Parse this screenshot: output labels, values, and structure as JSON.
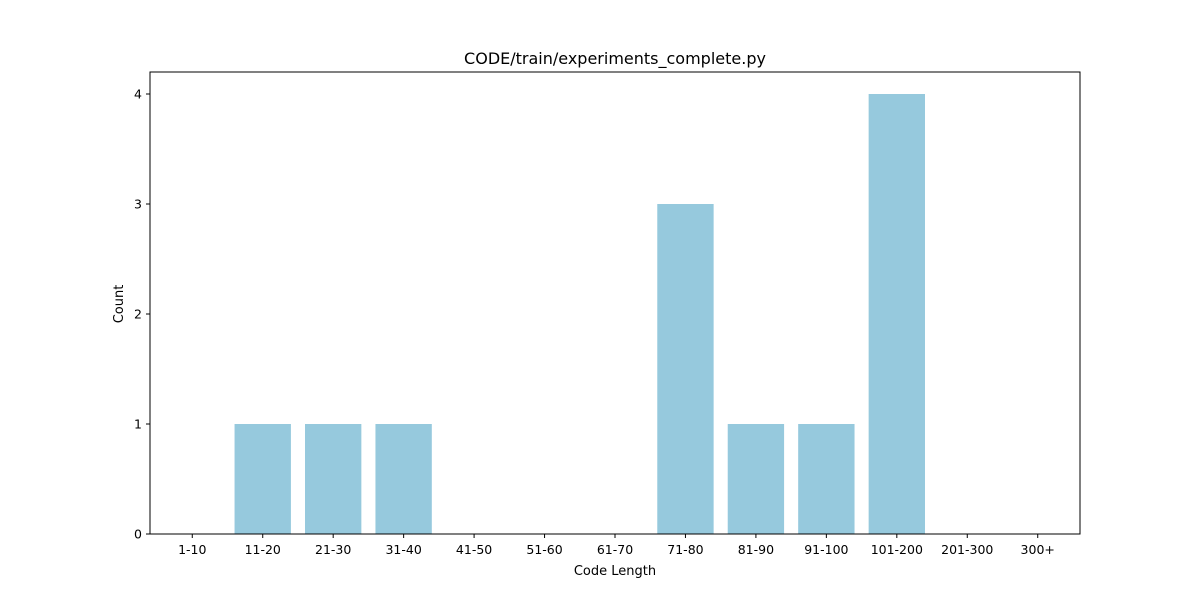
{
  "chart_data": {
    "type": "bar",
    "title": "CODE/train/experiments_complete.py",
    "xlabel": "Code Length",
    "ylabel": "Count",
    "categories": [
      "1-10",
      "11-20",
      "21-30",
      "31-40",
      "41-50",
      "51-60",
      "61-70",
      "71-80",
      "81-90",
      "91-100",
      "101-200",
      "201-300",
      "300+"
    ],
    "values": [
      0,
      1,
      1,
      1,
      0,
      0,
      0,
      3,
      1,
      1,
      4,
      0,
      0
    ],
    "yticks": [
      0,
      1,
      2,
      3,
      4
    ],
    "ylim": [
      0,
      4.2
    ],
    "bar_color": "#96c9dd",
    "grid": false,
    "legend": "none"
  }
}
